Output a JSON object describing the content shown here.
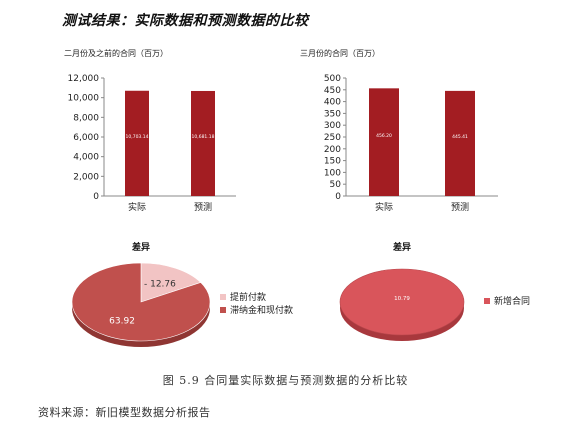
{
  "page_title": "测试结果：实际数据和预测数据的比较",
  "caption": "图 5.9  合同量实际数据与预测数据的分析比较",
  "source": "资料来源：新旧模型数据分析报告",
  "colors": {
    "bar": "#a31d22",
    "pie_dark": "#c0504d",
    "pie_light": "#f2c4c4",
    "pie_single": "#d9555b"
  },
  "chart_data": [
    {
      "type": "bar",
      "title": "二月份及之前的合同（百万）",
      "categories": [
        "实际",
        "预测"
      ],
      "values": [
        10703.14,
        10681.18
      ],
      "data_labels": [
        "10,703.14",
        "10,681.18"
      ],
      "ylim": [
        0,
        12000
      ],
      "yticks": [
        "0",
        "2,000",
        "4,000",
        "6,000",
        "8,000",
        "10,000",
        "12,000"
      ],
      "grid": false
    },
    {
      "type": "bar",
      "title": "三月份的合同（百万）",
      "categories": [
        "实际",
        "预测"
      ],
      "values": [
        456.2,
        445.41
      ],
      "data_labels": [
        "456.20",
        "445.41"
      ],
      "ylim": [
        0,
        500
      ],
      "yticks": [
        "0",
        "50",
        "100",
        "150",
        "200",
        "250",
        "300",
        "350",
        "400",
        "450",
        "500"
      ],
      "grid": false
    },
    {
      "type": "pie",
      "title": "差异",
      "legend_position": "right",
      "slices": [
        {
          "label": "提前付款",
          "value": -12.76,
          "data_label": "- 12.76"
        },
        {
          "label": "滞纳金和现付款",
          "value": 63.92,
          "data_label": "63.92"
        }
      ]
    },
    {
      "type": "pie",
      "title": "差异",
      "legend_position": "right",
      "slices": [
        {
          "label": "新增合同",
          "value": 10.79,
          "data_label": "10.79"
        }
      ]
    }
  ]
}
